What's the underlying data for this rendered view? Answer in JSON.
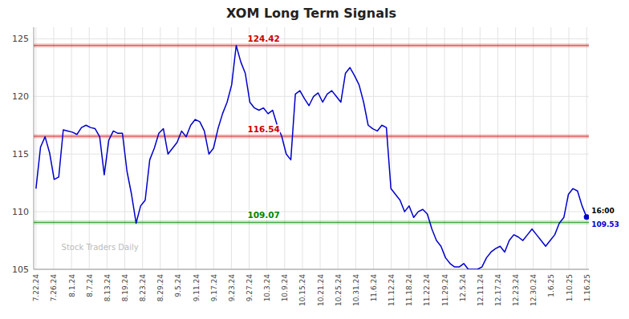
{
  "chart_data": {
    "type": "line",
    "title": "XOM Long Term Signals",
    "x": [
      0,
      1,
      2,
      3,
      4,
      5,
      6,
      7,
      8,
      9,
      10,
      11,
      12,
      13,
      14,
      15,
      16,
      17,
      18,
      19,
      20,
      21,
      22,
      23,
      24,
      25,
      26,
      27,
      28,
      29,
      30,
      31,
      32,
      33,
      34,
      35,
      36,
      37,
      38,
      39,
      40,
      41,
      42,
      43,
      44,
      45,
      46,
      47,
      48,
      49,
      50,
      51,
      52,
      53,
      54,
      55,
      56,
      57,
      58,
      59,
      60,
      61,
      62,
      63,
      64,
      65,
      66,
      67,
      68,
      69,
      70,
      71,
      72,
      73,
      74,
      75,
      76,
      77,
      78,
      79,
      80,
      81,
      82,
      83,
      84,
      85,
      86,
      87,
      88,
      89,
      90,
      91,
      92,
      93,
      94,
      95,
      96,
      97,
      98,
      99,
      100,
      101,
      102,
      103,
      104,
      105,
      106,
      107,
      108,
      109,
      110,
      111,
      112,
      113,
      114,
      115,
      116,
      117,
      118,
      119,
      120,
      121
    ],
    "series": [
      {
        "color": "#0000cc",
        "values": [
          112.0,
          115.6,
          116.5,
          115.1,
          112.8,
          113.0,
          117.1,
          117.0,
          116.9,
          116.7,
          117.3,
          117.5,
          117.3,
          117.2,
          116.5,
          113.2,
          116.2,
          117.0,
          116.8,
          116.8,
          113.5,
          111.5,
          109.0,
          110.5,
          111.0,
          114.5,
          115.5,
          116.8,
          117.2,
          115.0,
          115.5,
          116.0,
          117.0,
          116.5,
          117.5,
          118.0,
          117.8,
          117.0,
          115.0,
          115.5,
          117.2,
          118.5,
          119.5,
          121.0,
          124.42,
          123.0,
          122.0,
          119.5,
          119.0,
          118.8,
          119.0,
          118.5,
          118.8,
          117.5,
          116.54,
          115.0,
          114.5,
          120.2,
          120.5,
          119.8,
          119.2,
          120.0,
          120.3,
          119.5,
          120.2,
          120.5,
          120.0,
          119.5,
          122.0,
          122.5,
          121.8,
          121.0,
          119.5,
          117.5,
          117.2,
          117.0,
          117.5,
          117.3,
          112.0,
          111.5,
          111.0,
          110.0,
          110.5,
          109.5,
          110.0,
          110.2,
          109.8,
          108.5,
          107.5,
          107.0,
          106.0,
          105.5,
          105.2,
          105.2,
          105.5,
          105.0,
          105.0,
          105.0,
          105.2,
          106.0,
          106.5,
          106.8,
          107.0,
          106.5,
          107.5,
          108.0,
          107.8,
          107.5,
          108.0,
          108.5,
          108.0,
          107.5,
          107.0,
          107.5,
          108.0,
          109.0,
          109.5,
          111.5,
          112.0,
          111.8,
          110.5,
          109.53
        ]
      }
    ],
    "xlim": [
      -0.5,
      121.5
    ],
    "xticks": [
      {
        "value": 0,
        "label": "7.22.24"
      },
      {
        "value": 3.903225806451613,
        "label": "7.26.24"
      },
      {
        "value": 7.806451612903226,
        "label": "8.1.24"
      },
      {
        "value": 11.70967741935484,
        "label": "8.7.24"
      },
      {
        "value": 15.612903225806452,
        "label": "8.13.24"
      },
      {
        "value": 19.516129032258064,
        "label": "8.19.24"
      },
      {
        "value": 23.419354838709676,
        "label": "8.23.24"
      },
      {
        "value": 27.32258064516129,
        "label": "8.29.24"
      },
      {
        "value": 31.225806451612904,
        "label": "9.5.24"
      },
      {
        "value": 35.12903225806452,
        "label": "9.11.24"
      },
      {
        "value": 39.03225806451613,
        "label": "9.17.24"
      },
      {
        "value": 42.935483870967744,
        "label": "9.23.24"
      },
      {
        "value": 46.83870967741935,
        "label": "9.27.24"
      },
      {
        "value": 50.74193548387097,
        "label": "10.3.24"
      },
      {
        "value": 54.645161290322584,
        "label": "10.9.24"
      },
      {
        "value": 58.54838709677419,
        "label": "10.15.24"
      },
      {
        "value": 62.45161290322581,
        "label": "10.21.24"
      },
      {
        "value": 66.35483870967742,
        "label": "10.25.24"
      },
      {
        "value": 70.25806451612904,
        "label": "10.31.24"
      },
      {
        "value": 74.16129032258064,
        "label": "11.6.24"
      },
      {
        "value": 78.06451612903226,
        "label": "11.12.24"
      },
      {
        "value": 81.96774193548387,
        "label": "11.18.24"
      },
      {
        "value": 85.87096774193549,
        "label": "11.22.24"
      },
      {
        "value": 89.7741935483871,
        "label": "11.29.24"
      },
      {
        "value": 93.6774193548387,
        "label": "12.5.24"
      },
      {
        "value": 97.58064516129032,
        "label": "12.11.24"
      },
      {
        "value": 101.48387096774194,
        "label": "12.17.24"
      },
      {
        "value": 105.38709677419355,
        "label": "12.23.24"
      },
      {
        "value": 109.29032258064517,
        "label": "12.30.24"
      },
      {
        "value": 113.19354838709677,
        "label": "1.6.25"
      },
      {
        "value": 117.09677419354838,
        "label": "1.10.25"
      },
      {
        "value": 121,
        "label": "1.16.25"
      }
    ],
    "ylim": [
      105,
      126
    ],
    "yticks": [
      105,
      110,
      115,
      120,
      125
    ],
    "grid": true,
    "reference_lines": [
      {
        "value": 124.42,
        "label": "124.42",
        "color": "#cc0000"
      },
      {
        "value": 116.54,
        "label": "116.54",
        "color": "#cc0000"
      },
      {
        "value": 109.07,
        "label": "109.07",
        "color": "#008800"
      }
    ],
    "annotations": [
      {
        "text": "16:00",
        "x": 121,
        "y": 109.53
      },
      {
        "text": "109.53",
        "x": 121,
        "y": 109.53
      },
      {
        "text": "Stock Traders Daily"
      }
    ]
  }
}
